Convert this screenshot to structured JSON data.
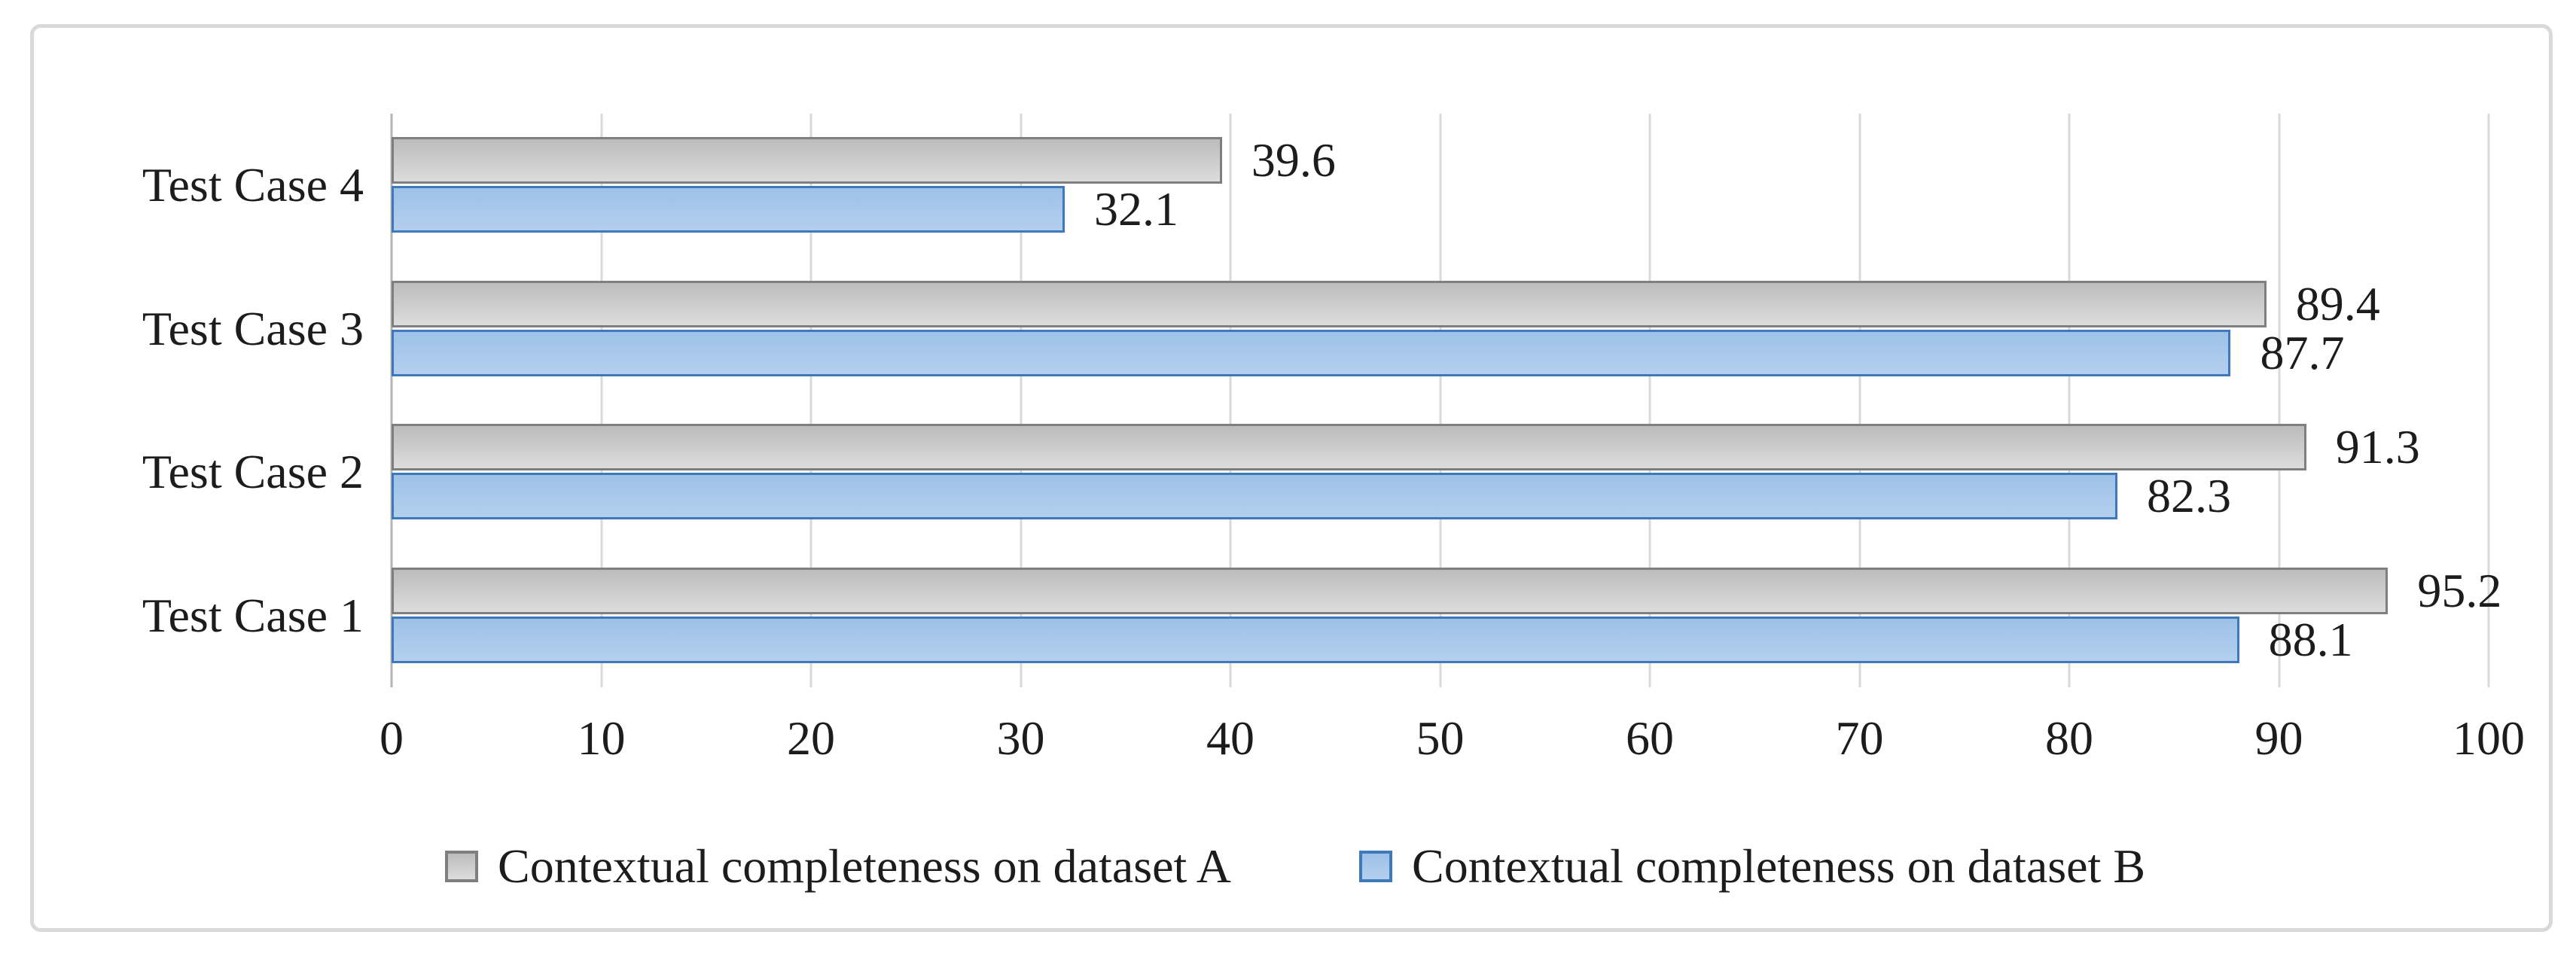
{
  "chart_data": {
    "type": "bar",
    "orientation": "horizontal",
    "categories": [
      "Test Case 1",
      "Test Case 2",
      "Test Case 3",
      "Test Case 4"
    ],
    "row_order_top_to_bottom": [
      "Test Case 4",
      "Test Case 3",
      "Test Case 2",
      "Test Case 1"
    ],
    "series": [
      {
        "name": "Contextual completeness on dataset A",
        "values": [
          95.2,
          91.3,
          89.4,
          39.6
        ],
        "fill_top": "#bcbcbc",
        "fill_bottom": "#dcdcdc",
        "border": "#7f7f7f"
      },
      {
        "name": "Contextual completeness on dataset B",
        "values": [
          88.1,
          82.3,
          87.7,
          32.1
        ],
        "fill_top": "#9dc1e8",
        "fill_bottom": "#b4cfee",
        "border": "#3d79bb"
      }
    ],
    "xlim": [
      0,
      100
    ],
    "x_ticks": [
      0,
      10,
      20,
      30,
      40,
      50,
      60,
      70,
      80,
      90,
      100
    ],
    "grid": true,
    "data_labels": true,
    "legend_position": "bottom",
    "title": ""
  },
  "colors": {
    "gridline": "#d9d9d9",
    "axis_line": "#b5b5b5",
    "frame_border": "#d9d9d9",
    "text": "#1c1c1c",
    "background": "#ffffff"
  }
}
